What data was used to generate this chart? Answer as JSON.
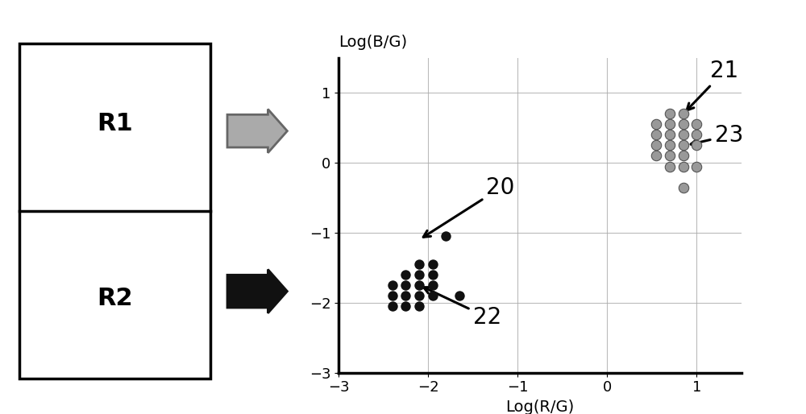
{
  "black_dots": [
    [
      -2.4,
      -2.05
    ],
    [
      -2.25,
      -2.05
    ],
    [
      -2.1,
      -2.05
    ],
    [
      -2.4,
      -1.9
    ],
    [
      -2.25,
      -1.9
    ],
    [
      -2.1,
      -1.9
    ],
    [
      -1.95,
      -1.9
    ],
    [
      -2.4,
      -1.75
    ],
    [
      -2.25,
      -1.75
    ],
    [
      -2.1,
      -1.75
    ],
    [
      -1.95,
      -1.75
    ],
    [
      -2.25,
      -1.6
    ],
    [
      -2.1,
      -1.6
    ],
    [
      -1.95,
      -1.6
    ],
    [
      -2.1,
      -1.45
    ],
    [
      -1.95,
      -1.45
    ],
    [
      -1.8,
      -1.05
    ],
    [
      -1.65,
      -1.9
    ]
  ],
  "gray_dots": [
    [
      0.7,
      0.7
    ],
    [
      0.85,
      0.7
    ],
    [
      0.55,
      0.55
    ],
    [
      0.7,
      0.55
    ],
    [
      0.85,
      0.55
    ],
    [
      1.0,
      0.55
    ],
    [
      0.55,
      0.4
    ],
    [
      0.7,
      0.4
    ],
    [
      0.85,
      0.4
    ],
    [
      1.0,
      0.4
    ],
    [
      0.55,
      0.25
    ],
    [
      0.7,
      0.25
    ],
    [
      0.85,
      0.25
    ],
    [
      1.0,
      0.25
    ],
    [
      0.55,
      0.1
    ],
    [
      0.7,
      0.1
    ],
    [
      0.85,
      0.1
    ],
    [
      0.7,
      -0.05
    ],
    [
      0.85,
      -0.05
    ],
    [
      1.0,
      -0.05
    ],
    [
      0.85,
      -0.35
    ]
  ],
  "xlim": [
    -3,
    1.5
  ],
  "ylim": [
    -3,
    1.5
  ],
  "xticks": [
    -3,
    -2,
    -1,
    0,
    1
  ],
  "yticks": [
    -3,
    -2,
    -1,
    0,
    1
  ],
  "xlabel": "Log(R/G)",
  "ylabel": "Log(B/G)",
  "black_dot_color": "#111111",
  "gray_dot_color": "#999999",
  "background_color": "#ffffff",
  "grid_color": "#aaaaaa",
  "label_20": "20",
  "label_21": "21",
  "label_22": "22",
  "label_23": "23",
  "r1_label": "R1",
  "r2_label": "R2",
  "axis_fontsize": 14,
  "tick_fontsize": 13,
  "annot_fontsize": 20
}
